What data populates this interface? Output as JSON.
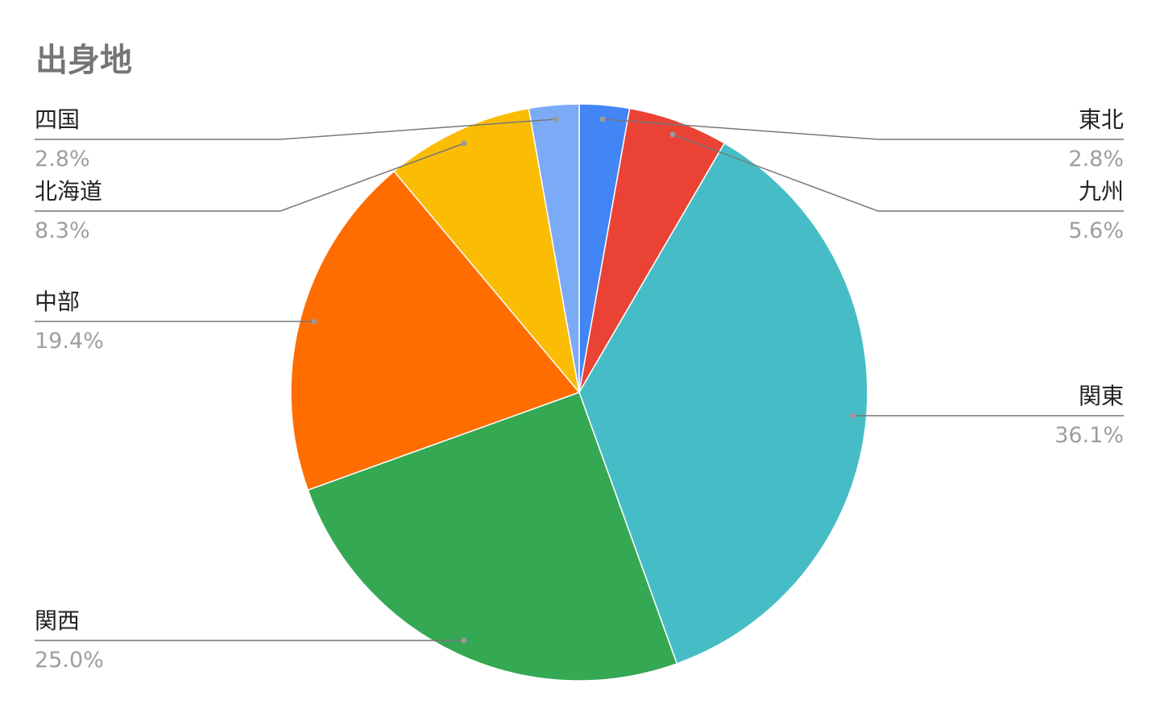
{
  "chart_data": {
    "type": "pie",
    "title": "出身地",
    "start_angle": "top",
    "direction": "clockwise",
    "legend": "labeled leader lines",
    "slices": [
      {
        "label": "東北",
        "value": 2.8,
        "display": "2.8%",
        "color": "#4285f4"
      },
      {
        "label": "九州",
        "value": 5.6,
        "display": "5.6%",
        "color": "#ea4335"
      },
      {
        "label": "関東",
        "value": 36.1,
        "display": "36.1%",
        "color": "#46bdc6"
      },
      {
        "label": "関西",
        "value": 25.0,
        "display": "25.0%",
        "color": "#34a853"
      },
      {
        "label": "中部",
        "value": 19.4,
        "display": "19.4%",
        "color": "#ff6d01"
      },
      {
        "label": "北海道",
        "value": 8.3,
        "display": "8.3%",
        "color": "#fbbc04"
      },
      {
        "label": "四国",
        "value": 2.8,
        "display": "2.8%",
        "color": "#7baaf7"
      }
    ]
  }
}
